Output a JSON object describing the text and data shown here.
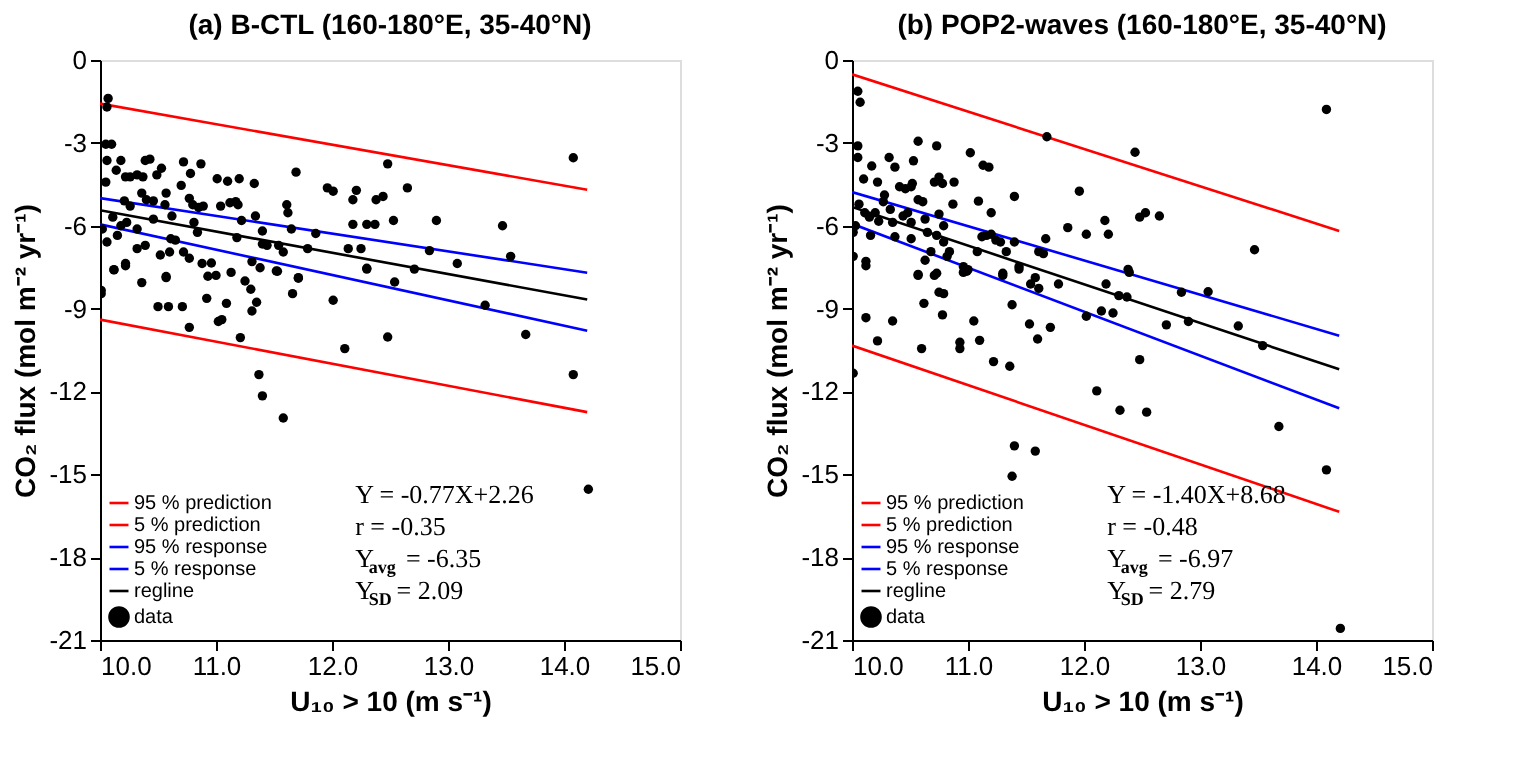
{
  "chart_data": [
    {
      "type": "scatter",
      "title": "(a) B-CTL (160-180°E, 35-40°N)",
      "xlabel": "U₁₀ > 10 (m s⁻¹)",
      "ylabel": "CO₂ flux (mol m⁻² yr⁻¹)",
      "xlim": [
        10,
        15
      ],
      "ylim": [
        -21,
        0
      ],
      "xticks": [
        {
          "value": 10,
          "label": "10.0"
        },
        {
          "value": 11,
          "label": "11.0"
        },
        {
          "value": 12,
          "label": "12.0"
        },
        {
          "value": 13,
          "label": "13.0"
        },
        {
          "value": 14,
          "label": "14.0"
        },
        {
          "value": 15,
          "label": "15.0"
        }
      ],
      "yticks": [
        0,
        -3,
        -6,
        -9,
        -12,
        -15,
        -18,
        -21
      ],
      "grid": false,
      "legend": "bottom left",
      "annotations": [
        "Y = -0.77X+2.26",
        "r = -0.35",
        "Y$_{avg}$ = -6.35",
        "Y$_{SD}$ = 2.09"
      ],
      "series": [
        {
          "name": "95 % prediction",
          "type": "line",
          "color": "#ff0000",
          "line_style": "solid",
          "marker": "none",
          "x": [
            10.0,
            14.2
          ],
          "values": [
            -1.58,
            -4.7
          ]
        },
        {
          "name": "5 % prediction",
          "type": "line",
          "color": "#ff0000",
          "line_style": "solid",
          "marker": "none",
          "x": [
            10.0,
            14.2
          ],
          "values": [
            -9.4,
            -12.75
          ]
        },
        {
          "name": "95 % response",
          "type": "line",
          "color": "#0000ff",
          "line_style": "solid",
          "marker": "none",
          "x": [
            10.0,
            14.2
          ],
          "values": [
            -5.0,
            -7.7
          ]
        },
        {
          "name": "5 % response",
          "type": "line",
          "color": "#0000ff",
          "line_style": "solid",
          "marker": "none",
          "x": [
            10.0,
            14.2
          ],
          "values": [
            -5.95,
            -9.8
          ]
        },
        {
          "name": "regline",
          "type": "line",
          "color": "#000000",
          "line_style": "solid",
          "marker": "none",
          "x": [
            10.0,
            14.2
          ],
          "values": [
            -5.44,
            -8.67
          ]
        },
        {
          "name": "data",
          "type": "scatter",
          "color": "#000000",
          "marker": "circle",
          "x": [
            10.07,
            10.06,
            10.05,
            10.1,
            10.06,
            10.05,
            10.02,
            10.06,
            10.12,
            10.14,
            10.18,
            10.22,
            10.26,
            10.32,
            10.37,
            10.39,
            10.43,
            10.49,
            10.53,
            10.36,
            10.4,
            10.21,
            10.26,
            10.46,
            10.57,
            10.56,
            10.7,
            10.72,
            10.78,
            10.87,
            10.77,
            10.8,
            10.85,
            10.89,
            10.81,
            10.84,
            10.62,
            10.46,
            10.11,
            10.18,
            10.23,
            10.15,
            10.32,
            10.39,
            10.32,
            10.22,
            10.52,
            10.61,
            10.65,
            10.6,
            10.72,
            10.77,
            10.88,
            10.96,
            11.01,
            11.1,
            11.2,
            11.04,
            11.12,
            11.17,
            11.19,
            11.22,
            11.18,
            11.33,
            11.34,
            11.4,
            11.4,
            11.44,
            11.31,
            11.61,
            11.62,
            11.65,
            11.69,
            11.54,
            11.58,
            11.53,
            11.79,
            11.86,
            11.96,
            12.01,
            12.18,
            12.21,
            12.18,
            12.14,
            12.25,
            12.3,
            12.38,
            12.44,
            12.37,
            12.48,
            12.53,
            12.65,
            12.84,
            12.9,
            13.08,
            13.47,
            13.54,
            14.08,
            12.3,
            11.71,
            10.57,
            10.01,
            10.01,
            10.12,
            10.22,
            10.36,
            10.5,
            10.59,
            10.57,
            10.71,
            10.77,
            10.92,
            10.93,
            11.0,
            11.02,
            11.05,
            11.09,
            11.13,
            11.21,
            11.25,
            11.3,
            11.31,
            11.35,
            11.38,
            11.37,
            11.4,
            11.52,
            11.58,
            11.66,
            11.71,
            12.01,
            12.11,
            12.3,
            12.48,
            12.54,
            12.71,
            13.32,
            13.67,
            14.08,
            14.21
          ],
          "values": [
            -1.39,
            -1.7,
            -3.05,
            -3.05,
            -3.64,
            -4.42,
            -6.12,
            -6.59,
            -7.6,
            -3.99,
            -3.64,
            -4.23,
            -4.23,
            -4.16,
            -4.23,
            -3.64,
            -3.59,
            -4.16,
            -3.92,
            -4.82,
            -5.06,
            -5.1,
            -5.29,
            -5.1,
            -4.82,
            -5.24,
            -4.54,
            -3.69,
            -4.11,
            -3.76,
            -5.01,
            -5.24,
            -5.34,
            -5.29,
            -5.88,
            -6.24,
            -5.65,
            -5.76,
            -5.69,
            -6.0,
            -5.88,
            -6.35,
            -6.12,
            -6.71,
            -6.83,
            -7.37,
            -7.06,
            -6.47,
            -6.52,
            -6.95,
            -6.95,
            -7.18,
            -7.37,
            -7.35,
            -4.3,
            -4.39,
            -4.3,
            -5.29,
            -5.17,
            -5.13,
            -5.24,
            -5.81,
            -6.43,
            -4.47,
            -5.65,
            -6.19,
            -6.66,
            -6.71,
            -7.3,
            -5.24,
            -5.53,
            -6.12,
            -4.06,
            -6.71,
            -6.95,
            -7.65,
            -6.83,
            -6.28,
            -4.63,
            -4.75,
            -5.95,
            -4.72,
            -5.06,
            -6.83,
            -6.83,
            -5.95,
            -5.06,
            -4.94,
            -5.95,
            -3.76,
            -5.81,
            -4.63,
            -6.9,
            -5.81,
            -7.37,
            -6.0,
            -7.11,
            -3.54,
            -7.54,
            -7.9,
            -7.84,
            -8.34,
            -8.46,
            -7.59,
            -7.45,
            -8.06,
            -8.93,
            -8.93,
            -7.88,
            -8.93,
            -9.68,
            -8.63,
            -7.83,
            -7.8,
            -9.47,
            -9.4,
            -8.81,
            -7.69,
            -10.05,
            -8.0,
            -8.3,
            -9.09,
            -8.77,
            -7.52,
            -11.39,
            -12.16,
            -7.64,
            -12.96,
            -8.46,
            -7.88,
            -8.7,
            -10.45,
            -7.57,
            -10.03,
            -8.04,
            -7.57,
            -8.88,
            -9.94,
            -11.39,
            -15.54
          ]
        }
      ]
    },
    {
      "type": "scatter",
      "title": "(b) POP2-waves (160-180°E, 35-40°N)",
      "xlabel": "U₁₀ > 10 (m s⁻¹)",
      "ylabel": "CO₂ flux (mol m⁻² yr⁻¹)",
      "xlim": [
        10,
        15
      ],
      "ylim": [
        -21,
        0
      ],
      "xticks": [
        {
          "value": 10,
          "label": "10.0"
        },
        {
          "value": 11,
          "label": "11.0"
        },
        {
          "value": 12,
          "label": "12.0"
        },
        {
          "value": 13,
          "label": "13.0"
        },
        {
          "value": 14,
          "label": "14.0"
        },
        {
          "value": 15,
          "label": "15.0"
        }
      ],
      "yticks": [
        0,
        -3,
        -6,
        -9,
        -12,
        -15,
        -18,
        -21
      ],
      "grid": false,
      "legend": "bottom left",
      "annotations": [
        "Y = -1.40X+8.68",
        "r = -0.48",
        "Y$_{avg}$ = -6.97",
        "Y$_{SD}$ = 2.79"
      ],
      "series": [
        {
          "name": "95 % prediction",
          "type": "line",
          "color": "#ff0000",
          "line_style": "solid",
          "marker": "none",
          "x": [
            10.0,
            14.2
          ],
          "values": [
            -0.52,
            -6.19
          ]
        },
        {
          "name": "5 % prediction",
          "type": "line",
          "color": "#ff0000",
          "line_style": "solid",
          "marker": "none",
          "x": [
            10.0,
            14.2
          ],
          "values": [
            -10.34,
            -16.36
          ]
        },
        {
          "name": "95 % response",
          "type": "line",
          "color": "#0000ff",
          "line_style": "solid",
          "marker": "none",
          "x": [
            10.0,
            14.2
          ],
          "values": [
            -4.78,
            -9.98
          ]
        },
        {
          "name": "5 % response",
          "type": "line",
          "color": "#0000ff",
          "line_style": "solid",
          "marker": "none",
          "x": [
            10.0,
            14.2
          ],
          "values": [
            -5.93,
            -12.61
          ]
        },
        {
          "name": "regline",
          "type": "line",
          "color": "#000000",
          "line_style": "solid",
          "marker": "none",
          "x": [
            10.0,
            14.2
          ],
          "values": [
            -5.32,
            -11.2
          ]
        },
        {
          "name": "data",
          "type": "scatter",
          "color": "#000000",
          "marker": "circle",
          "x": [
            10.05,
            10.07,
            10.05,
            10.05,
            10.1,
            10.17,
            10.01,
            10.03,
            10.01,
            10.12,
            10.06,
            10.11,
            10.15,
            10.16,
            10.2,
            10.23,
            10.22,
            10.32,
            10.28,
            10.37,
            10.27,
            10.33,
            10.35,
            10.37,
            10.41,
            10.46,
            10.51,
            10.52,
            10.53,
            10.57,
            10.44,
            10.48,
            10.51,
            10.57,
            10.61,
            10.63,
            10.51,
            10.57,
            10.63,
            10.68,
            10.65,
            10.73,
            10.71,
            10.75,
            10.78,
            10.75,
            10.79,
            10.73,
            10.79,
            10.84,
            10.88,
            10.87,
            10.82,
            10.73,
            11.02,
            11.09,
            11.13,
            11.18,
            11.2,
            11.12,
            11.16,
            11.2,
            11.24,
            11.28,
            11.4,
            11.4,
            11.33,
            11.08,
            10.99,
            10.96,
            11.68,
            11.67,
            11.61,
            11.65,
            11.86,
            11.96,
            12.02,
            12.18,
            12.21,
            12.44,
            12.48,
            12.53,
            12.65,
            12.38,
            13.47,
            14.09,
            11.44,
            11.58,
            11.3,
            10.12,
            10.01,
            10.12,
            10.22,
            10.35,
            10.57,
            10.6,
            10.62,
            10.71,
            10.75,
            10.79,
            10.78,
            10.93,
            10.93,
            10.96,
            11.0,
            11.05,
            11.1,
            11.22,
            11.3,
            11.36,
            11.38,
            11.4,
            11.38,
            11.44,
            11.53,
            11.54,
            11.6,
            11.58,
            11.61,
            11.71,
            11.78,
            12.02,
            12.11,
            12.15,
            12.19,
            12.25,
            12.31,
            12.3,
            12.37,
            12.39,
            12.48,
            12.54,
            12.71,
            12.84,
            12.9,
            13.07,
            13.33,
            13.54,
            13.68,
            14.09,
            14.21
          ],
          "values": [
            -1.13,
            -1.53,
            -3.11,
            -3.53,
            -4.31,
            -3.84,
            -6.24,
            -6.0,
            -7.11,
            -7.29,
            -5.22,
            -5.53,
            -5.69,
            -6.35,
            -5.53,
            -5.84,
            -4.42,
            -3.53,
            -4.89,
            -3.88,
            -5.13,
            -5.41,
            -5.88,
            -6.4,
            -4.59,
            -4.66,
            -4.59,
            -4.47,
            -3.65,
            -2.94,
            -5.65,
            -5.53,
            -5.88,
            -5.06,
            -5.13,
            -5.76,
            -6.47,
            -7.76,
            -7.25,
            -6.94,
            -6.24,
            -3.11,
            -4.42,
            -4.24,
            -4.47,
            -5.58,
            -6.0,
            -6.35,
            -6.59,
            -6.94,
            -4.42,
            -5.22,
            -7.11,
            -7.72,
            -3.36,
            -5.11,
            -3.81,
            -3.88,
            -5.53,
            -6.4,
            -6.35,
            -6.31,
            -6.52,
            -6.59,
            -6.59,
            -4.94,
            -6.94,
            -6.94,
            -7.65,
            -7.48,
            -2.78,
            -6.47,
            -6.94,
            -7.01,
            -6.07,
            -4.75,
            -6.31,
            -5.81,
            -6.31,
            -3.34,
            -5.69,
            -5.53,
            -5.65,
            -7.58,
            -6.87,
            -1.79,
            -7.48,
            -7.88,
            -7.72,
            -7.45,
            -11.34,
            -9.33,
            -10.17,
            -9.45,
            -7.8,
            -10.45,
            -8.81,
            -7.8,
            -8.41,
            -8.46,
            -9.23,
            -10.22,
            -10.45,
            -7.69,
            -7.59,
            -9.45,
            -10.15,
            -10.92,
            -7.8,
            -11.09,
            -8.86,
            -13.97,
            -15.07,
            -7.57,
            -9.56,
            -8.11,
            -10.1,
            -14.16,
            -8.27,
            -9.68,
            -8.11,
            -9.28,
            -11.98,
            -9.09,
            -8.11,
            -9.16,
            -12.68,
            -8.53,
            -8.58,
            -7.69,
            -10.85,
            -12.75,
            -9.59,
            -8.41,
            -9.47,
            -8.39,
            -9.63,
            -10.34,
            -13.27,
            -14.84,
            -20.58
          ]
        }
      ]
    }
  ]
}
